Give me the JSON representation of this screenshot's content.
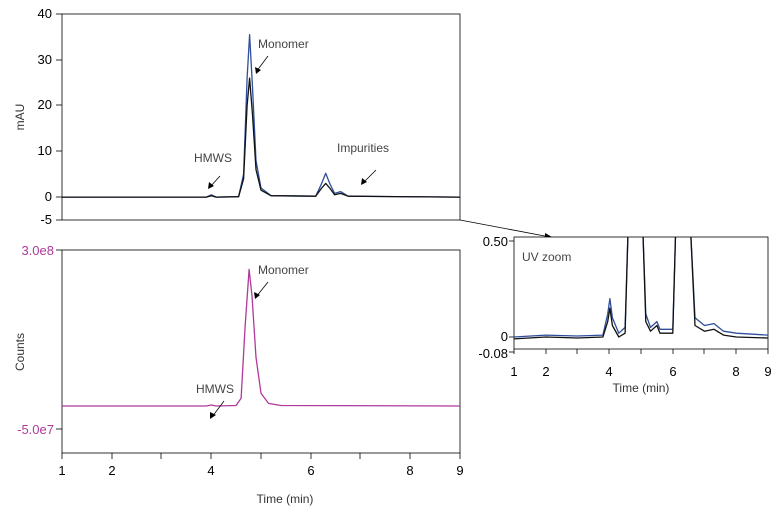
{
  "chart_data": [
    {
      "type": "line",
      "ylabel": "mAU",
      "xlim": [
        1,
        9
      ],
      "ylim": [
        -5,
        40
      ],
      "yticks": [
        "40",
        "30",
        "20",
        "10",
        "0",
        "-5"
      ],
      "yticks_values": [
        40,
        30,
        20,
        10,
        0,
        -5
      ],
      "series": [
        {
          "color": "#2f4e9b",
          "points": [
            [
              1,
              0
            ],
            [
              3.9,
              0
            ],
            [
              4.0,
              0.5
            ],
            [
              4.1,
              0
            ],
            [
              4.55,
              0.1
            ],
            [
              4.65,
              5
            ],
            [
              4.72,
              26
            ],
            [
              4.77,
              35.5
            ],
            [
              4.83,
              24
            ],
            [
              4.9,
              8
            ],
            [
              5.0,
              2
            ],
            [
              5.2,
              0.3
            ],
            [
              6.1,
              0.2
            ],
            [
              6.22,
              3
            ],
            [
              6.3,
              5.2
            ],
            [
              6.38,
              3
            ],
            [
              6.48,
              0.8
            ],
            [
              6.6,
              1.2
            ],
            [
              6.75,
              0.2
            ],
            [
              9,
              0
            ]
          ]
        },
        {
          "color": "#111111",
          "points": [
            [
              1,
              0
            ],
            [
              3.9,
              0
            ],
            [
              4.0,
              0.3
            ],
            [
              4.1,
              0
            ],
            [
              4.55,
              0.1
            ],
            [
              4.65,
              4
            ],
            [
              4.72,
              20
            ],
            [
              4.77,
              26
            ],
            [
              4.83,
              18
            ],
            [
              4.9,
              6
            ],
            [
              5.0,
              1.5
            ],
            [
              5.2,
              0.3
            ],
            [
              6.1,
              0.2
            ],
            [
              6.22,
              2
            ],
            [
              6.3,
              3
            ],
            [
              6.38,
              2
            ],
            [
              6.48,
              0.5
            ],
            [
              6.6,
              0.8
            ],
            [
              6.75,
              0.2
            ],
            [
              9,
              0
            ]
          ]
        }
      ],
      "annotations": [
        "Monomer",
        "HMWS",
        "Impurities"
      ]
    },
    {
      "type": "line",
      "xlabel": "Time (min)",
      "ylabel": "Counts",
      "xlim": [
        1,
        9
      ],
      "xticks": [
        "1",
        "2",
        "4",
        "6",
        "8",
        "9"
      ],
      "xticks_values": [
        1,
        2,
        4,
        6,
        8,
        9
      ],
      "ylim": [
        -50000000.0,
        300000000.0
      ],
      "yticks": [
        "3.0e8",
        "-5.0e7"
      ],
      "yticks_values": [
        300000000,
        -50000000
      ],
      "series": [
        {
          "color": "#b0399b",
          "points": [
            [
              1,
              -5000000.0
            ],
            [
              3.9,
              -5000000.0
            ],
            [
              4.0,
              -3000000.0
            ],
            [
              4.1,
              -5000000.0
            ],
            [
              4.5,
              -4000000.0
            ],
            [
              4.6,
              10000000.0
            ],
            [
              4.68,
              150000000.0
            ],
            [
              4.76,
              262000000.0
            ],
            [
              4.82,
              210000000.0
            ],
            [
              4.9,
              90000000.0
            ],
            [
              5.0,
              20000000.0
            ],
            [
              5.15,
              0
            ],
            [
              5.4,
              -4000000.0
            ],
            [
              9,
              -5000000.0
            ]
          ]
        }
      ],
      "annotations": [
        "Monomer",
        "HMWS"
      ]
    },
    {
      "type": "line",
      "title": "UV zoom",
      "xlabel": "Time (min)",
      "xlim": [
        1,
        9
      ],
      "xticks": [
        "1",
        "2",
        "4",
        "6",
        "8",
        "9"
      ],
      "xticks_values": [
        1,
        2,
        4,
        6,
        8,
        9
      ],
      "ylim": [
        -0.08,
        0.55
      ],
      "yticks": [
        "0.50",
        "0",
        "-0.08"
      ],
      "yticks_values": [
        0.5,
        0,
        -0.08
      ],
      "series": [
        {
          "color": "#2f4e9b",
          "points": [
            [
              1,
              0
            ],
            [
              2,
              0.01
            ],
            [
              3,
              0.005
            ],
            [
              3.8,
              0.01
            ],
            [
              3.95,
              0.12
            ],
            [
              4.02,
              0.2
            ],
            [
              4.1,
              0.1
            ],
            [
              4.3,
              0.02
            ],
            [
              4.5,
              0.05
            ],
            [
              4.6,
              0.6
            ],
            [
              5.05,
              0.6
            ],
            [
              5.15,
              0.12
            ],
            [
              5.3,
              0.05
            ],
            [
              5.5,
              0.08
            ],
            [
              5.6,
              0.04
            ],
            [
              6.0,
              0.04
            ],
            [
              6.1,
              0.6
            ],
            [
              6.55,
              0.6
            ],
            [
              6.7,
              0.1
            ],
            [
              7.0,
              0.06
            ],
            [
              7.3,
              0.07
            ],
            [
              7.6,
              0.03
            ],
            [
              8,
              0.02
            ],
            [
              9,
              0.01
            ]
          ]
        },
        {
          "color": "#111111",
          "points": [
            [
              1,
              -0.01
            ],
            [
              2,
              0
            ],
            [
              3,
              -0.005
            ],
            [
              3.8,
              0
            ],
            [
              3.95,
              0.08
            ],
            [
              4.02,
              0.15
            ],
            [
              4.1,
              0.06
            ],
            [
              4.3,
              0.0
            ],
            [
              4.5,
              0.02
            ],
            [
              4.6,
              0.6
            ],
            [
              5.05,
              0.6
            ],
            [
              5.15,
              0.08
            ],
            [
              5.3,
              0.03
            ],
            [
              5.5,
              0.06
            ],
            [
              5.6,
              0.02
            ],
            [
              6.0,
              0.02
            ],
            [
              6.1,
              0.6
            ],
            [
              6.55,
              0.6
            ],
            [
              6.7,
              0.06
            ],
            [
              7.0,
              0.03
            ],
            [
              7.3,
              0.04
            ],
            [
              7.6,
              0.01
            ],
            [
              8,
              0.0
            ],
            [
              9,
              -0.005
            ]
          ]
        }
      ]
    }
  ]
}
